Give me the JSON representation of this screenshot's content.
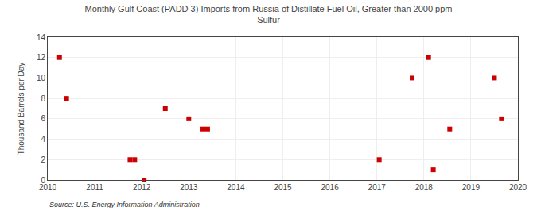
{
  "chart_data": {
    "type": "scatter",
    "title": "Monthly Gulf Coast (PADD 3) Imports from Russia of Distillate Fuel Oil, Greater than 2000 ppm\nSulfur",
    "ylabel": "Thousand Barrels per Day",
    "source": "Source: U.S. Energy Information Administration",
    "x": [
      2010.25,
      2010.4,
      2011.75,
      2011.85,
      2012.05,
      2012.5,
      2013.0,
      2013.3,
      2013.4,
      2017.05,
      2017.75,
      2018.1,
      2018.2,
      2018.55,
      2019.5,
      2019.65
    ],
    "values": [
      12,
      8,
      2,
      2,
      0,
      7,
      6,
      5,
      5,
      2,
      10,
      12,
      1,
      5,
      10,
      6
    ],
    "color": "#cc0000",
    "marker": "square",
    "xlim": [
      2010,
      2020
    ],
    "ylim": [
      0,
      14
    ],
    "xticks": [
      2010,
      2011,
      2012,
      2013,
      2014,
      2015,
      2016,
      2017,
      2018,
      2019,
      2020
    ],
    "yticks": [
      0,
      2,
      4,
      6,
      8,
      10,
      12,
      14
    ],
    "grid": true
  }
}
